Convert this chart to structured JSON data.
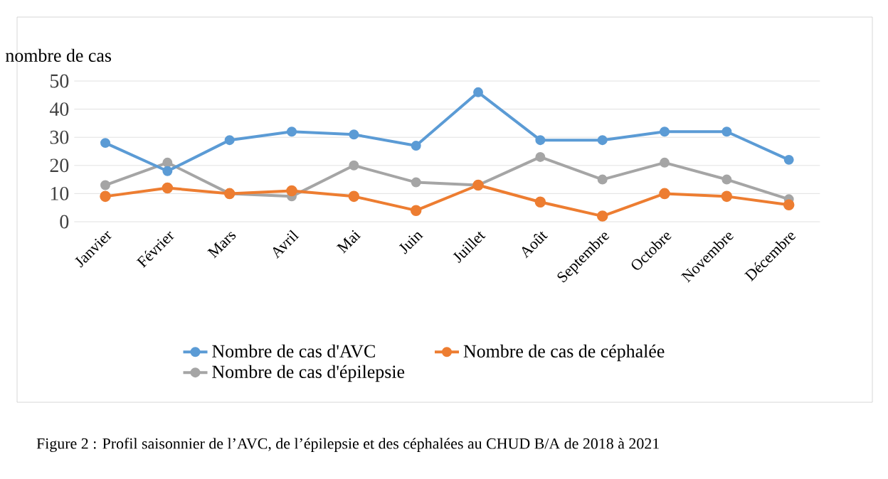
{
  "chart_data": {
    "type": "line",
    "ylabel": "nombre de cas",
    "categories": [
      "Janvier",
      "Février",
      "Mars",
      "Avril",
      "Mai",
      "Juin",
      "Juillet",
      "Août",
      "Septembre",
      "Octobre",
      "Novembre",
      "Décembre"
    ],
    "series": [
      {
        "name": "Nombre de cas d'AVC",
        "color": "#5b9bd5",
        "values": [
          28,
          18,
          29,
          32,
          31,
          27,
          46,
          29,
          29,
          32,
          32,
          22
        ]
      },
      {
        "name": "Nombre de cas de céphalée",
        "color": "#ed7d31",
        "values": [
          9,
          12,
          10,
          11,
          9,
          4,
          13,
          7,
          2,
          10,
          9,
          6
        ]
      },
      {
        "name": "Nombre de cas d'épilepsie",
        "color": "#a5a5a5",
        "values": [
          13,
          21,
          10,
          9,
          20,
          14,
          13,
          23,
          15,
          21,
          15,
          8
        ]
      }
    ],
    "ylim": [
      0,
      50
    ],
    "yticks": [
      0,
      10,
      20,
      30,
      40,
      50
    ],
    "grid": "y",
    "legend": "bottom",
    "marker": "circle",
    "line_style": "solid",
    "annotations": [
      "Figure 2 : Profil saisonnier de l’AVC, de l’épilepsie et des céphalées au CHUD B/A de 2018 à 2021"
    ]
  }
}
